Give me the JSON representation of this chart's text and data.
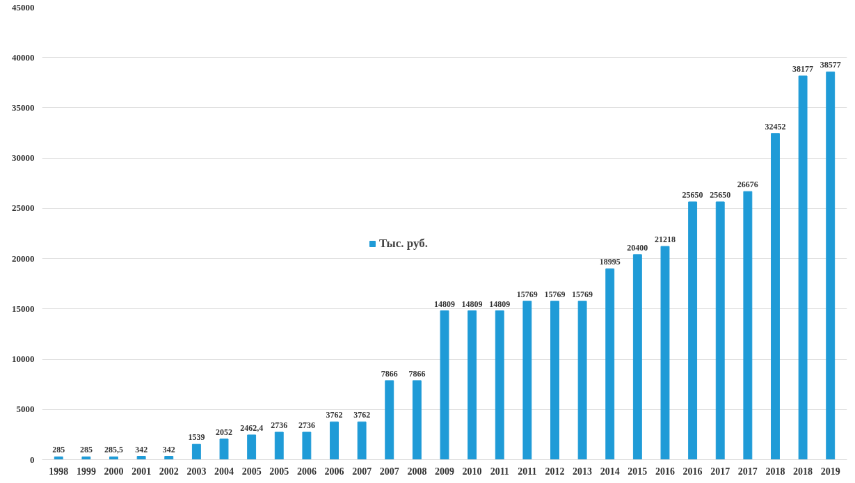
{
  "chart_data": {
    "type": "bar",
    "categories": [
      "1998",
      "1999",
      "2000",
      "2001",
      "2002",
      "2003",
      "2004",
      "2005",
      "2005",
      "2006",
      "2006",
      "2007",
      "2007",
      "2008",
      "2009",
      "2010",
      "2011",
      "2011",
      "2012",
      "2013",
      "2014",
      "2015",
      "2016",
      "2016",
      "2017",
      "2017",
      "2018",
      "2018",
      "2019"
    ],
    "series": [
      {
        "name": "Тыс. руб.",
        "color": "#1f9bd7",
        "values": [
          285,
          285,
          285.5,
          342,
          342,
          1539,
          2052,
          2462.4,
          2736,
          2736,
          3762,
          3762,
          7866,
          7866,
          14809,
          14809,
          14809,
          15769,
          15769,
          15769,
          18995,
          20400,
          21218,
          25650,
          25650,
          26676,
          32452,
          38177,
          38577
        ]
      }
    ],
    "value_labels": [
      "285",
      "285",
      "285,5",
      "342",
      "342",
      "1539",
      "2052",
      "2462,4",
      "2736",
      "2736",
      "3762",
      "3762",
      "7866",
      "7866",
      "14809",
      "14809",
      "14809",
      "15769",
      "15769",
      "15769",
      "18995",
      "20400",
      "21218",
      "25650",
      "25650",
      "26676",
      "32452",
      "38177",
      "38577"
    ],
    "ylim": [
      0,
      45000
    ],
    "yticks": [
      0,
      5000,
      10000,
      15000,
      20000,
      25000,
      30000,
      35000,
      40000,
      45000
    ],
    "grid": "y",
    "legend": "center"
  }
}
